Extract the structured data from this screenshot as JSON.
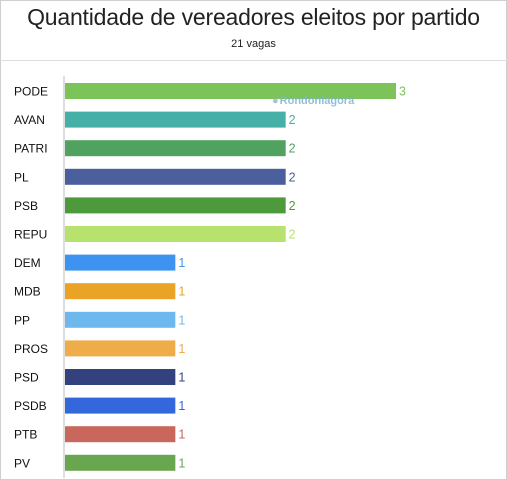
{
  "title": "Quantidade de vereadores eleitos por partido",
  "subtitle": "21 vagas",
  "watermark": "Rondoniagora",
  "chart_data": {
    "type": "bar",
    "orientation": "horizontal",
    "title": "Quantidade de vereadores eleitos por partido",
    "subtitle": "21 vagas",
    "xlabel": "",
    "ylabel": "",
    "xlim": [
      0,
      3
    ],
    "grid": false,
    "categories": [
      "PODE",
      "AVAN",
      "PATRI",
      "PL",
      "PSB",
      "REPU",
      "DEM",
      "MDB",
      "PP",
      "PROS",
      "PSD",
      "PSDB",
      "PTB",
      "PV"
    ],
    "values": [
      3,
      2,
      2,
      2,
      2,
      2,
      1,
      1,
      1,
      1,
      1,
      1,
      1,
      1
    ],
    "colors": [
      "#7cc35a",
      "#46b0a8",
      "#4fa260",
      "#4a5f9c",
      "#4d9a3d",
      "#b7e26e",
      "#3f93f0",
      "#e9a427",
      "#6fb8ee",
      "#efad49",
      "#33427e",
      "#3567dc",
      "#c9675c",
      "#68a64f"
    ]
  }
}
